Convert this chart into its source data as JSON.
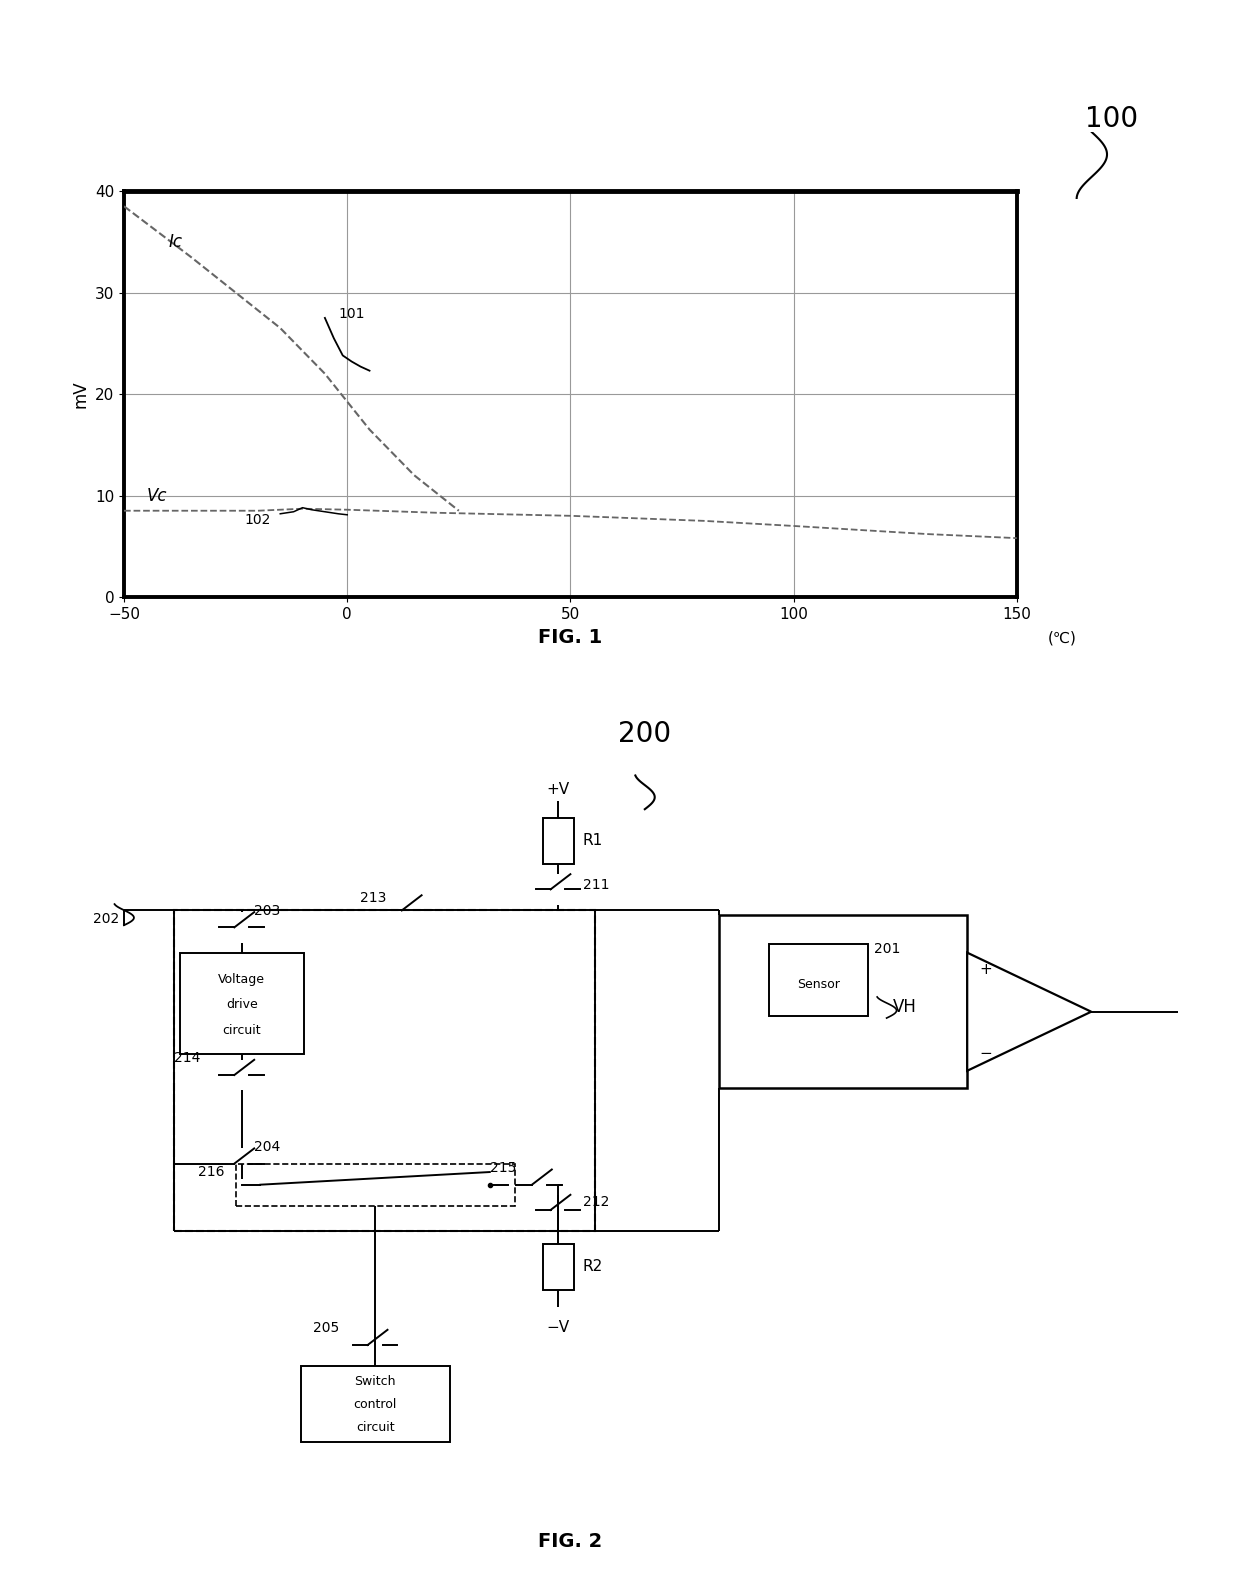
{
  "fig1": {
    "title": "FIG. 1",
    "label_100": "100",
    "ylabel": "mV",
    "xlabel_unit": "(℃)",
    "xlim": [
      -50,
      150
    ],
    "ylim": [
      0,
      40
    ],
    "xticks": [
      -50,
      0,
      50,
      100,
      150
    ],
    "yticks": [
      0,
      10,
      20,
      30,
      40
    ],
    "Ic_label": "Ic",
    "Vc_label": "Vc",
    "label_101": "101",
    "label_102": "102",
    "Ic_x": [
      -50,
      -35,
      -25,
      -15,
      -5,
      5,
      15,
      25
    ],
    "Ic_y": [
      38.5,
      33.5,
      30.0,
      26.5,
      22.0,
      16.5,
      12.0,
      8.5
    ],
    "Vc_x": [
      -50,
      -20,
      -10,
      0,
      20,
      50,
      80,
      100,
      130,
      150
    ],
    "Vc_y": [
      8.5,
      8.5,
      8.7,
      8.6,
      8.3,
      8.0,
      7.5,
      7.0,
      6.2,
      5.8
    ],
    "bump101_x": [
      -5,
      -3,
      -1,
      1,
      3,
      5
    ],
    "bump101_y": [
      27.5,
      25.5,
      23.8,
      23.2,
      22.7,
      22.3
    ],
    "bump102_x": [
      -15,
      -12,
      -10,
      -8,
      -5,
      -2,
      0
    ],
    "bump102_y": [
      8.2,
      8.4,
      8.8,
      8.6,
      8.4,
      8.2,
      8.1
    ]
  },
  "fig2": {
    "title": "FIG. 2",
    "label_200": "200"
  },
  "bg_color": "#ffffff",
  "line_color": "#000000",
  "dashed_color": "#666666"
}
